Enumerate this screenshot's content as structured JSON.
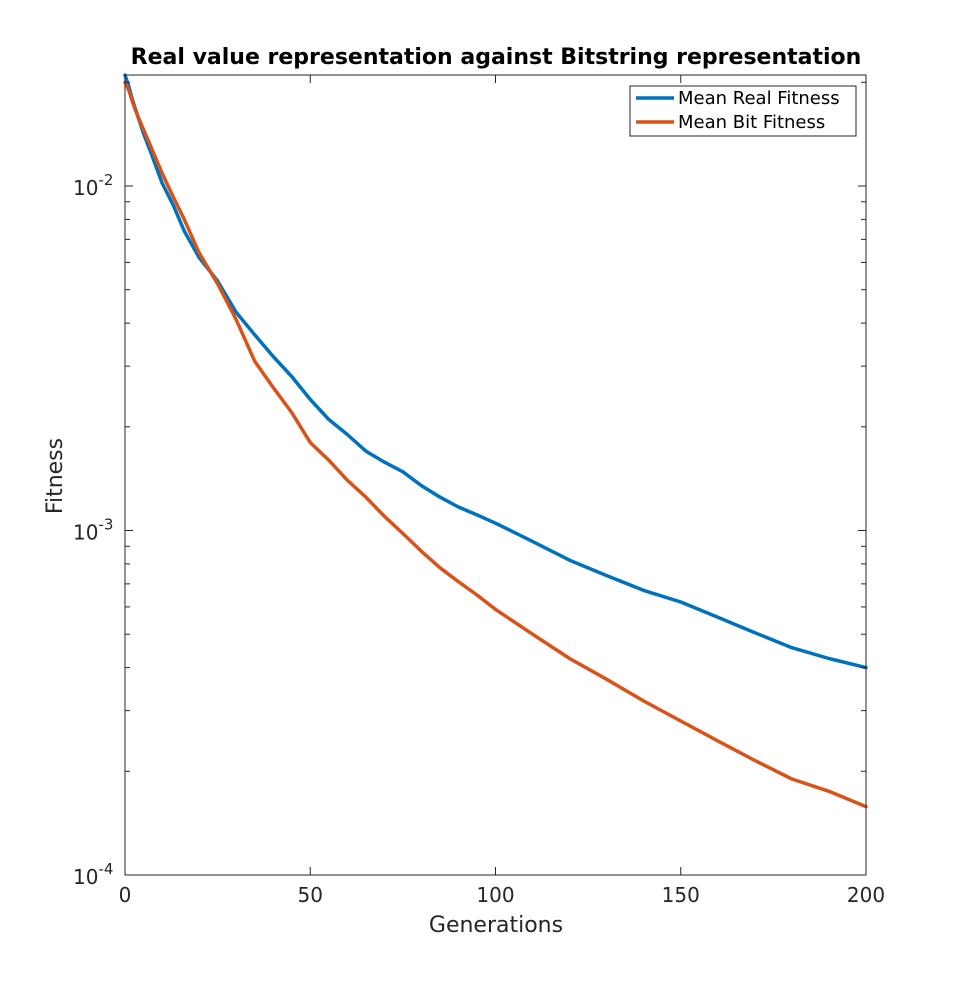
{
  "chart_data": {
    "type": "line",
    "title": "Real value representation against Bitstring representation",
    "xlabel": "Generations",
    "ylabel": "Fitness",
    "xlim": [
      0,
      200
    ],
    "ylim": [
      0.0001,
      0.021
    ],
    "yscale": "log",
    "grid": false,
    "legend_position": "top-right",
    "x_ticks": [
      {
        "value": 0,
        "label": "0"
      },
      {
        "value": 50,
        "label": "50"
      },
      {
        "value": 100,
        "label": "100"
      },
      {
        "value": 150,
        "label": "150"
      },
      {
        "value": 200,
        "label": "200"
      }
    ],
    "y_ticks": [
      {
        "value": 0.0001,
        "base": "10",
        "exp": "-4"
      },
      {
        "value": 0.001,
        "base": "10",
        "exp": "-3"
      },
      {
        "value": 0.01,
        "base": "10",
        "exp": "-2"
      }
    ],
    "x": [
      0,
      1,
      2,
      3,
      5,
      7,
      10,
      13,
      16,
      20,
      25,
      30,
      35,
      40,
      45,
      50,
      55,
      60,
      65,
      70,
      75,
      80,
      85,
      90,
      95,
      100,
      110,
      120,
      130,
      140,
      150,
      160,
      170,
      180,
      190,
      200
    ],
    "series": [
      {
        "name": "Mean Real Fitness",
        "color": "#0072BD",
        "values": [
          0.021,
          0.0195,
          0.0178,
          0.0165,
          0.0142,
          0.0125,
          0.0102,
          0.0088,
          0.0074,
          0.0062,
          0.0053,
          0.0043,
          0.0037,
          0.0032,
          0.0028,
          0.0024,
          0.0021,
          0.0019,
          0.0017,
          0.00158,
          0.00148,
          0.00135,
          0.00125,
          0.00117,
          0.00111,
          0.00105,
          0.00093,
          0.00082,
          0.00074,
          0.00067,
          0.00062,
          0.00056,
          0.000505,
          0.000457,
          0.000425,
          0.0004
        ]
      },
      {
        "name": "Mean Bit Fitness",
        "color": "#D95319",
        "values": [
          0.02,
          0.019,
          0.0176,
          0.0164,
          0.0146,
          0.013,
          0.0109,
          0.0093,
          0.008,
          0.0064,
          0.0052,
          0.0041,
          0.0031,
          0.0026,
          0.0022,
          0.0018,
          0.0016,
          0.0014,
          0.00125,
          0.0011,
          0.00098,
          0.00087,
          0.00078,
          0.00071,
          0.00065,
          0.00059,
          0.0005,
          0.000425,
          0.00037,
          0.00032,
          0.00028,
          0.000245,
          0.000215,
          0.00019,
          0.000175,
          0.000158
        ]
      }
    ]
  }
}
